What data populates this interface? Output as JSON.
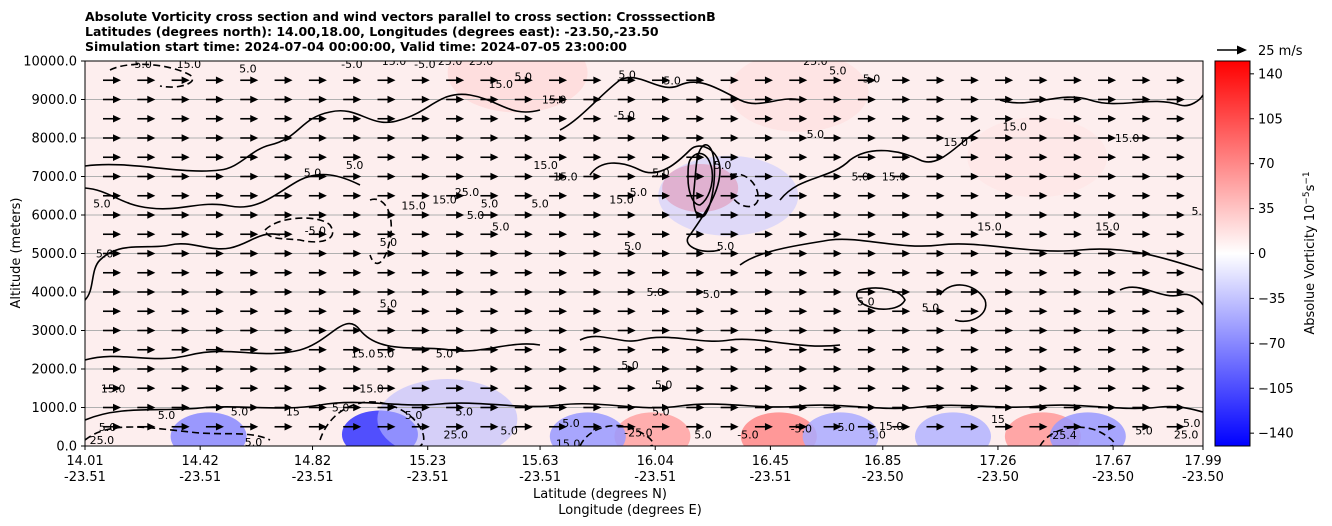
{
  "header": {
    "title_line1": "Absolute Vorticity cross section and wind vectors parallel to cross section: CrosssectionB",
    "title_line2": "Latitudes (degrees north): 14.00,18.00, Longitudes (degrees east): -23.50,-23.50",
    "title_line3": "Simulation start time: 2024-07-04 00:00:00, Valid time: 2024-07-05 23:00:00"
  },
  "quiver_key": {
    "label": "25 m/s"
  },
  "colorbar": {
    "label": "Absolue Vorticity 10",
    "label_exp": "−5",
    "label_unit": "s",
    "label_unit_exp": "−1",
    "ticks": [
      "140",
      "105",
      "70",
      "35",
      "0",
      "−35",
      "−70",
      "−105",
      "−140"
    ],
    "tick_values": [
      140,
      105,
      70,
      35,
      0,
      -35,
      -70,
      -105,
      -140
    ],
    "range": [
      -150,
      150
    ],
    "colormap": [
      "#0000ff",
      "#ffffff",
      "#ff0000"
    ]
  },
  "chart_data": {
    "type": "contour",
    "ylabel": "Altitude (meters)",
    "xlabel_line1": "Latitude (degrees N)",
    "xlabel_line2": "Longitude (degrees E)",
    "ylim": [
      0,
      10000
    ],
    "grid_y": true,
    "yticks": [
      "0.0",
      "1000.0",
      "2000.0",
      "3000.0",
      "4000.0",
      "5000.0",
      "6000.0",
      "7000.0",
      "8000.0",
      "9000.0",
      "10000.0"
    ],
    "ytick_values": [
      0,
      1000,
      2000,
      3000,
      4000,
      5000,
      6000,
      7000,
      8000,
      9000,
      10000
    ],
    "xticks_lat": [
      "14.01",
      "14.42",
      "14.82",
      "15.23",
      "15.63",
      "16.04",
      "16.45",
      "16.85",
      "17.26",
      "17.67",
      "17.99"
    ],
    "xticks_lon": [
      "-23.51",
      "-23.51",
      "-23.51",
      "-23.51",
      "-23.51",
      "-23.51",
      "-23.51",
      "-23.50",
      "-23.50",
      "-23.50",
      "-23.50"
    ],
    "xtick_values": [
      14.01,
      14.42,
      14.82,
      15.23,
      15.63,
      16.04,
      16.45,
      16.85,
      17.26,
      17.67,
      17.99
    ],
    "xlim": [
      14.01,
      17.99
    ],
    "vorticity_patches": [
      {
        "lat": 15.06,
        "alt": 300,
        "value": -120
      },
      {
        "lat": 14.45,
        "alt": 250,
        "value": -70
      },
      {
        "lat": 15.3,
        "alt": 700,
        "value": -40
      },
      {
        "lat": 16.2,
        "alt": 6700,
        "value": 80
      },
      {
        "lat": 16.3,
        "alt": 6500,
        "value": -30
      },
      {
        "lat": 16.48,
        "alt": 250,
        "value": 70
      },
      {
        "lat": 17.42,
        "alt": 250,
        "value": 60
      },
      {
        "lat": 17.58,
        "alt": 250,
        "value": -60
      },
      {
        "lat": 16.03,
        "alt": 250,
        "value": 55
      },
      {
        "lat": 15.8,
        "alt": 250,
        "value": -60
      },
      {
        "lat": 16.7,
        "alt": 250,
        "value": -50
      },
      {
        "lat": 17.1,
        "alt": 250,
        "value": -45
      },
      {
        "lat": 15.55,
        "alt": 9700,
        "value": 25
      },
      {
        "lat": 16.55,
        "alt": 9200,
        "value": 20
      },
      {
        "lat": 17.4,
        "alt": 7500,
        "value": 15
      }
    ],
    "contour_labels": [
      {
        "text": "-5.0",
        "lat": 14.21,
        "alt": 9920
      },
      {
        "text": "15.0",
        "lat": 14.38,
        "alt": 9920
      },
      {
        "text": "5.0",
        "lat": 14.59,
        "alt": 9800
      },
      {
        "text": "-5.0",
        "lat": 14.96,
        "alt": 9920
      },
      {
        "text": "15.0",
        "lat": 15.11,
        "alt": 10000
      },
      {
        "text": "-5.0",
        "lat": 15.22,
        "alt": 9920
      },
      {
        "text": "25.0",
        "lat": 15.31,
        "alt": 10000
      },
      {
        "text": "25.0",
        "lat": 15.42,
        "alt": 10000
      },
      {
        "text": "15.0",
        "lat": 15.49,
        "alt": 9400
      },
      {
        "text": "5.0",
        "lat": 15.57,
        "alt": 9600
      },
      {
        "text": "15.0",
        "lat": 15.68,
        "alt": 9000
      },
      {
        "text": "5.0",
        "lat": 15.94,
        "alt": 9650
      },
      {
        "text": "5.0",
        "lat": 16.1,
        "alt": 9500
      },
      {
        "text": "25.0",
        "lat": 16.61,
        "alt": 10000
      },
      {
        "text": "5.0",
        "lat": 16.69,
        "alt": 9750
      },
      {
        "text": "5.0",
        "lat": 16.81,
        "alt": 9550
      },
      {
        "text": "-5.0",
        "lat": 15.93,
        "alt": 8600
      },
      {
        "text": "5.0",
        "lat": 16.61,
        "alt": 8100
      },
      {
        "text": "15.0",
        "lat": 16.89,
        "alt": 7000
      },
      {
        "text": "15.0",
        "lat": 17.11,
        "alt": 7900
      },
      {
        "text": "15.0",
        "lat": 17.32,
        "alt": 8300
      },
      {
        "text": "15.0",
        "lat": 17.72,
        "alt": 8000
      },
      {
        "text": "5.0",
        "lat": 14.82,
        "alt": 7100
      },
      {
        "text": "5.0",
        "lat": 14.97,
        "alt": 7300
      },
      {
        "text": "15.0",
        "lat": 15.18,
        "alt": 6250
      },
      {
        "text": "15.0",
        "lat": 15.29,
        "alt": 6400
      },
      {
        "text": "25.0",
        "lat": 15.37,
        "alt": 6600
      },
      {
        "text": "5.0",
        "lat": 15.4,
        "alt": 6000
      },
      {
        "text": "5.0",
        "lat": 15.45,
        "alt": 6300
      },
      {
        "text": "5.0",
        "lat": 15.49,
        "alt": 5700
      },
      {
        "text": "5.0",
        "lat": 15.63,
        "alt": 6300
      },
      {
        "text": "15.0",
        "lat": 15.65,
        "alt": 7300
      },
      {
        "text": "15.0",
        "lat": 15.72,
        "alt": 7000
      },
      {
        "text": "15.0",
        "lat": 15.92,
        "alt": 6400
      },
      {
        "text": "5.0",
        "lat": 15.98,
        "alt": 6600
      },
      {
        "text": "5.0",
        "lat": 16.06,
        "alt": 7100
      },
      {
        "text": "5.0",
        "lat": 15.96,
        "alt": 5200
      },
      {
        "text": "5.0",
        "lat": 16.28,
        "alt": 7300
      },
      {
        "text": "5.0",
        "lat": 16.29,
        "alt": 5200
      },
      {
        "text": "5.0",
        "lat": 16.77,
        "alt": 7000
      },
      {
        "text": "15.0",
        "lat": 17.23,
        "alt": 5700
      },
      {
        "text": "15.0",
        "lat": 17.65,
        "alt": 5700
      },
      {
        "text": "5.0",
        "lat": 17.98,
        "alt": 6100
      },
      {
        "text": "5.0",
        "lat": 14.07,
        "alt": 6300
      },
      {
        "text": "5.0",
        "lat": 14.08,
        "alt": 5000
      },
      {
        "text": "-5.0",
        "lat": 14.83,
        "alt": 5600
      },
      {
        "text": "5.0",
        "lat": 15.09,
        "alt": 5300
      },
      {
        "text": "5.0",
        "lat": 15.09,
        "alt": 3700
      },
      {
        "text": "5.0",
        "lat": 15.08,
        "alt": 2400
      },
      {
        "text": "15.0",
        "lat": 15.0,
        "alt": 2400
      },
      {
        "text": "5.0",
        "lat": 15.29,
        "alt": 2400
      },
      {
        "text": "5.0",
        "lat": 15.95,
        "alt": 2100
      },
      {
        "text": "5.0",
        "lat": 16.04,
        "alt": 4000
      },
      {
        "text": "5.0",
        "lat": 16.24,
        "alt": 3950
      },
      {
        "text": "5.0",
        "lat": 16.07,
        "alt": 1600
      },
      {
        "text": "5.0",
        "lat": 16.79,
        "alt": 3750
      },
      {
        "text": "5.0",
        "lat": 17.02,
        "alt": 3600
      },
      {
        "text": "15.0",
        "lat": 14.11,
        "alt": 1500
      },
      {
        "text": "5.0",
        "lat": 14.09,
        "alt": 500
      },
      {
        "text": "25.0",
        "lat": 14.07,
        "alt": 150
      },
      {
        "text": "5.0",
        "lat": 14.3,
        "alt": 800
      },
      {
        "text": "5.0",
        "lat": 14.56,
        "alt": 900
      },
      {
        "text": "5.0",
        "lat": 14.61,
        "alt": 100
      },
      {
        "text": "15",
        "lat": 14.75,
        "alt": 900
      },
      {
        "text": "5.0",
        "lat": 14.92,
        "alt": 1000
      },
      {
        "text": "15.0",
        "lat": 15.03,
        "alt": 1500
      },
      {
        "text": "5.0",
        "lat": 15.18,
        "alt": 800
      },
      {
        "text": "5.0",
        "lat": 15.36,
        "alt": 900
      },
      {
        "text": "25.0",
        "lat": 15.33,
        "alt": 300
      },
      {
        "text": "5.0",
        "lat": 15.52,
        "alt": 400
      },
      {
        "text": "5.0",
        "lat": 15.74,
        "alt": 600
      },
      {
        "text": "15.0",
        "lat": 15.73,
        "alt": 60
      },
      {
        "text": "-25.0",
        "lat": 15.98,
        "alt": 350
      },
      {
        "text": "5.0",
        "lat": 16.06,
        "alt": 900
      },
      {
        "text": "5.0",
        "lat": 16.21,
        "alt": 300
      },
      {
        "text": "-5.0",
        "lat": 16.37,
        "alt": 300
      },
      {
        "text": "5.0",
        "lat": 16.72,
        "alt": 500
      },
      {
        "text": "5.0",
        "lat": 16.83,
        "alt": 300
      },
      {
        "text": "15.0",
        "lat": 16.88,
        "alt": 520
      },
      {
        "text": "15",
        "lat": 17.26,
        "alt": 700
      },
      {
        "text": "-25.4",
        "lat": 17.49,
        "alt": 280
      },
      {
        "text": "5.0",
        "lat": 17.78,
        "alt": 400
      },
      {
        "text": "5.0",
        "lat": 17.95,
        "alt": 600
      },
      {
        "text": "25.0",
        "lat": 17.93,
        "alt": 300
      },
      {
        "text": "-5.0",
        "lat": 16.56,
        "alt": 450
      }
    ],
    "wind_field": {
      "rows_alt": [
        9500,
        9000,
        8500,
        8000,
        7500,
        7000,
        6500,
        6000,
        5500,
        5000,
        4500,
        4000,
        3500,
        3000,
        2500,
        2000,
        1500,
        1000,
        500
      ],
      "columns": 32,
      "dominant_direction": "east",
      "key_speed": 25
    }
  }
}
